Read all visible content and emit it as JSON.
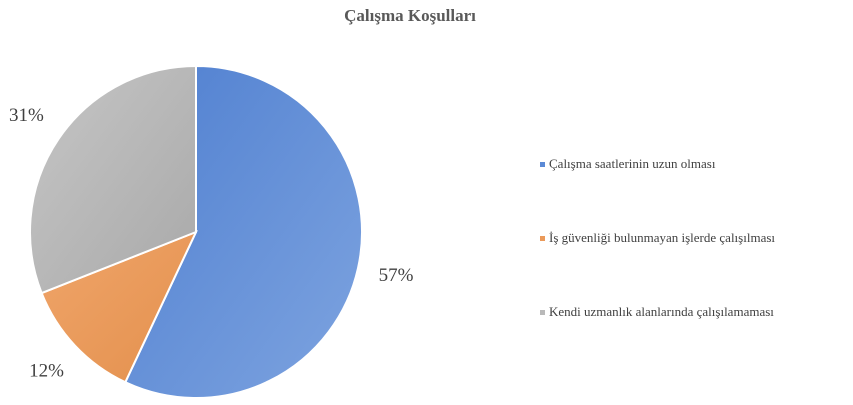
{
  "chart_data": {
    "type": "pie",
    "title": "Çalışma Koşulları",
    "categories": [
      "Çalışma saatlerinin uzun olması",
      "İş güvenliği bulunmayan işlerde çalışılması",
      "Kendi uzmanlık alanlarında çalışılamaması"
    ],
    "values": [
      57,
      12,
      31
    ],
    "value_labels": [
      "57%",
      "12%",
      "31%"
    ],
    "colors": [
      "#5b8ad6",
      "#eb9a5a",
      "#b9b9b9"
    ],
    "legend": "right"
  }
}
